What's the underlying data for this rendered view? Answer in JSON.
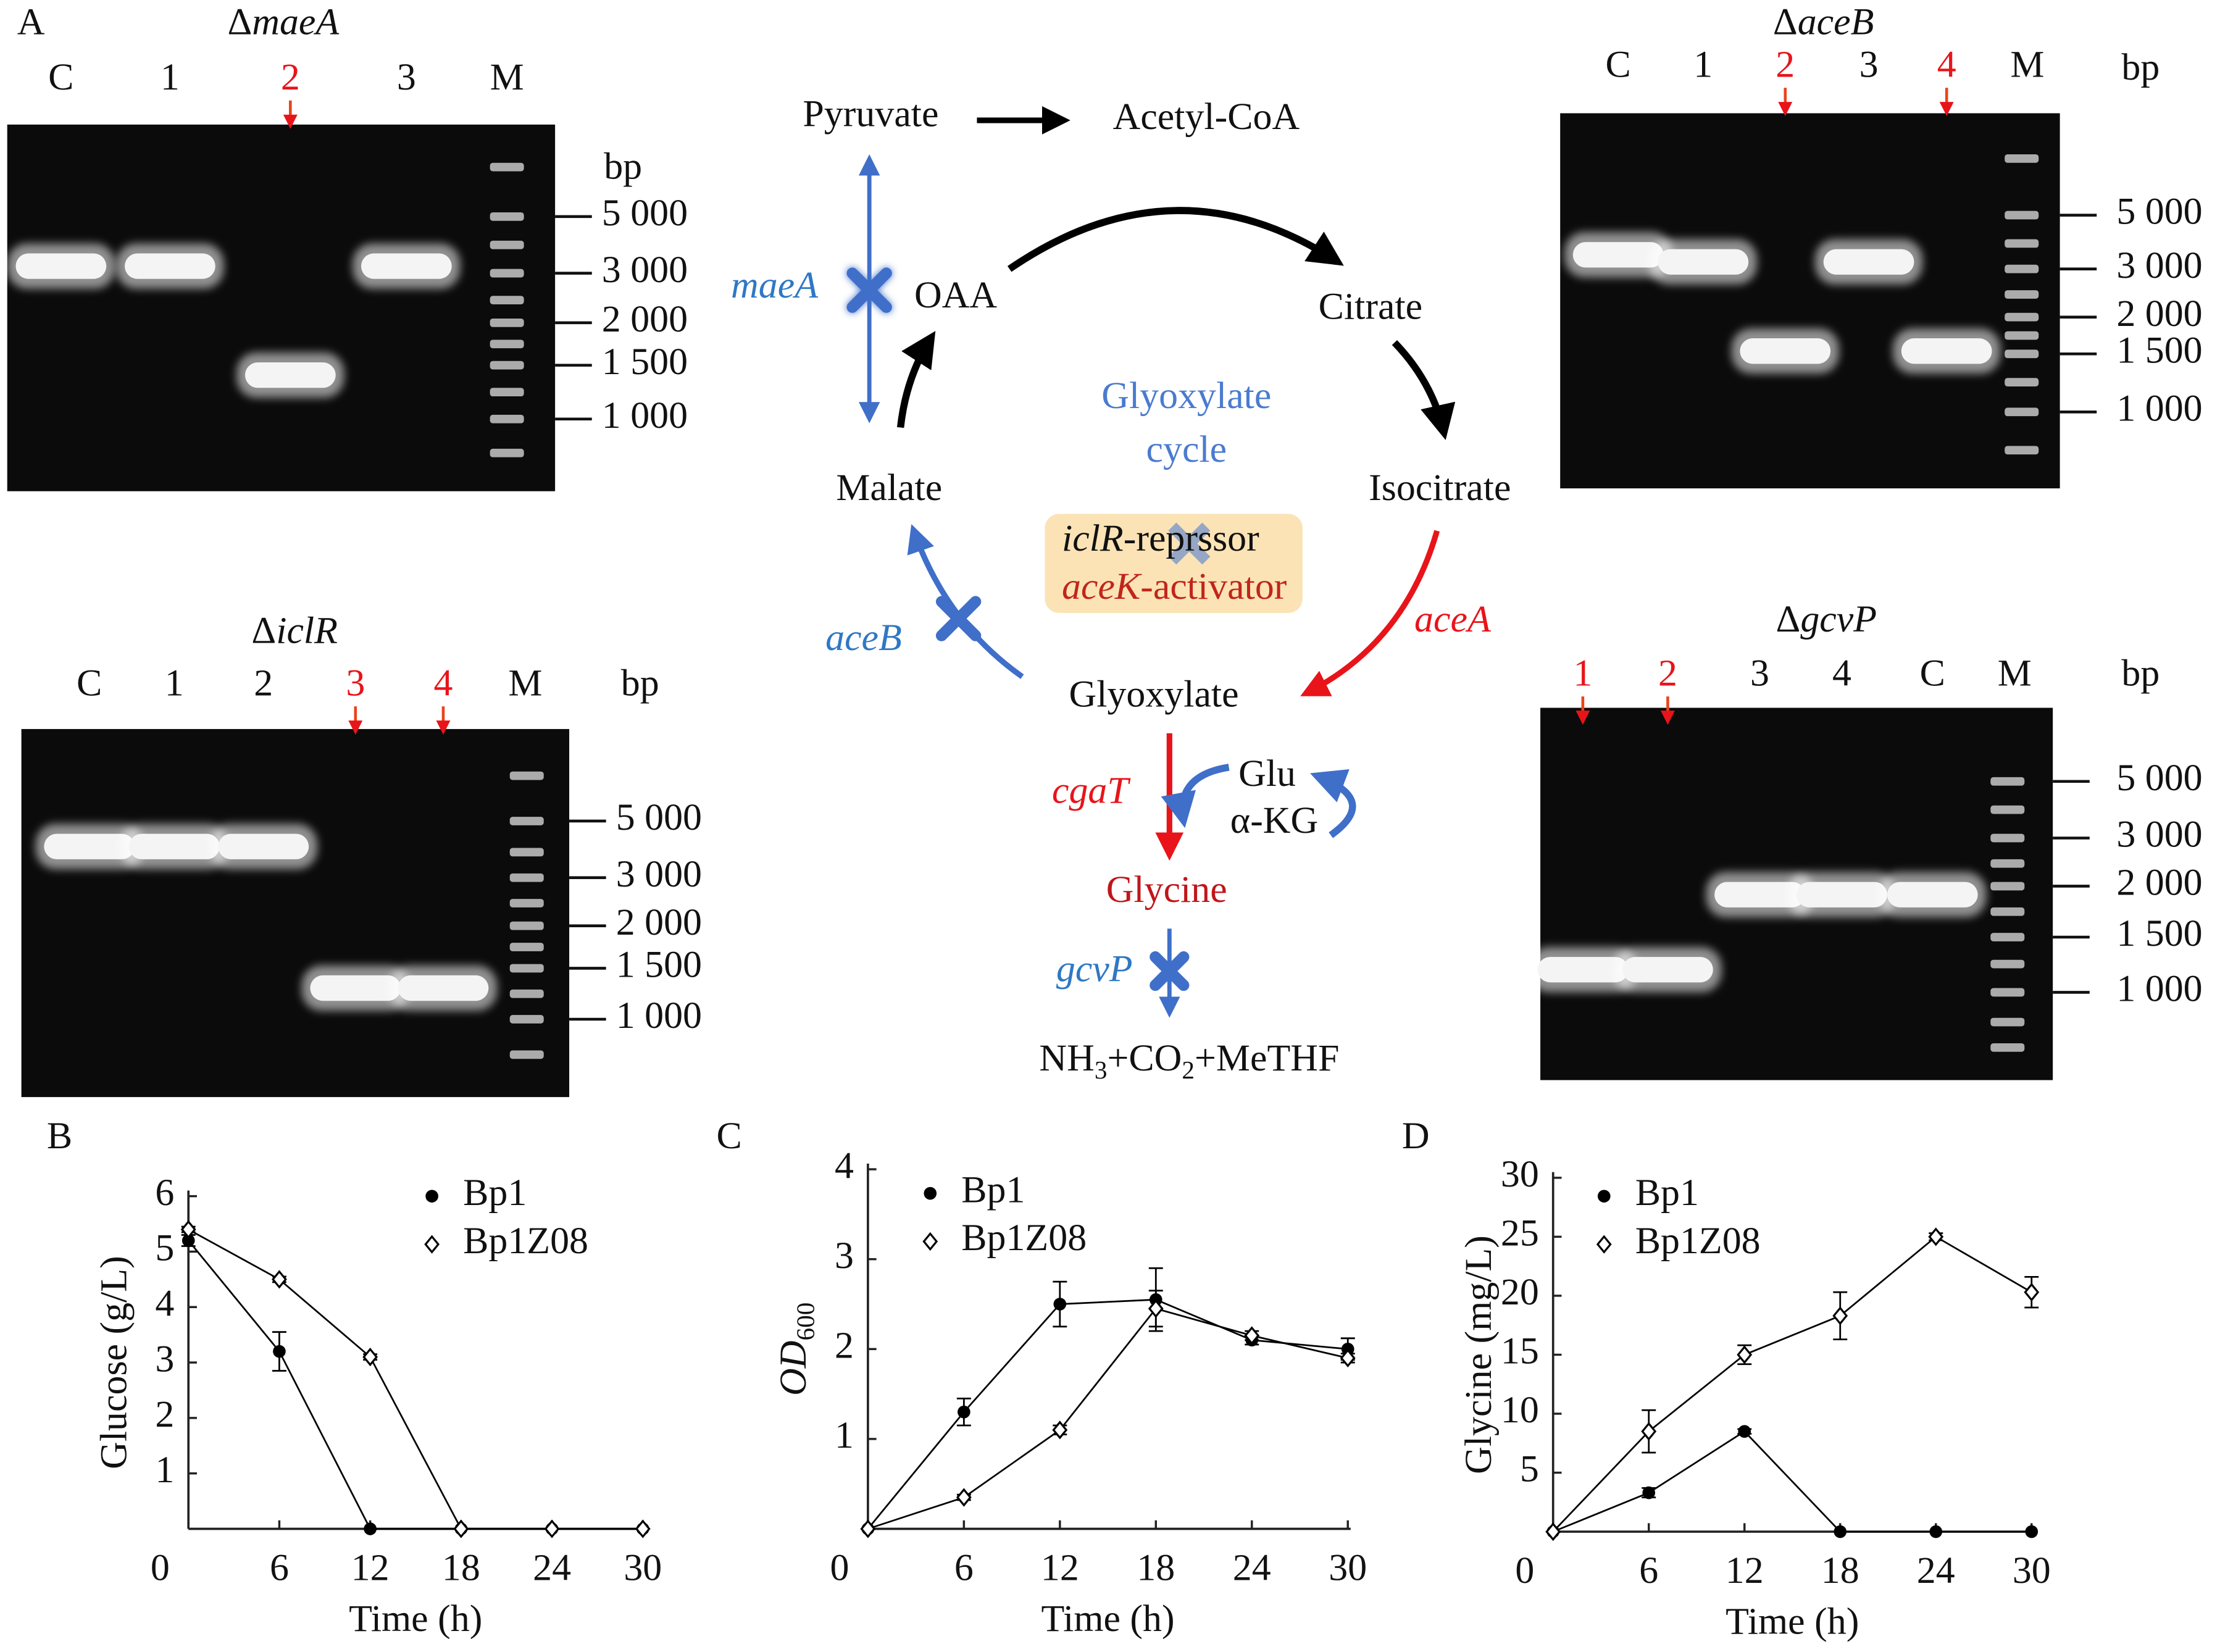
{
  "figure_label": "A",
  "gels": [
    {
      "title_delta": "Δ",
      "title_gene": "maeA",
      "lanes": [
        "C",
        "1",
        "2",
        "3",
        "M"
      ],
      "highlighted_lanes": [
        2
      ],
      "unit": "bp",
      "ladder": [
        "5 000",
        "3 000",
        "2 000",
        "1 500",
        "1 000"
      ]
    },
    {
      "title_delta": "Δ",
      "title_gene": "aceB",
      "lanes": [
        "C",
        "1",
        "2",
        "3",
        "4",
        "M"
      ],
      "highlighted_lanes": [
        2,
        4
      ],
      "unit": "bp",
      "ladder": [
        "5 000",
        "3 000",
        "2 000",
        "1 500",
        "1 000"
      ]
    },
    {
      "title_delta": "Δ",
      "title_gene": "iclR",
      "lanes": [
        "C",
        "1",
        "2",
        "3",
        "4",
        "M"
      ],
      "highlighted_lanes": [
        3,
        4
      ],
      "unit": "bp",
      "ladder": [
        "5 000",
        "3 000",
        "2 000",
        "1 500",
        "1 000"
      ]
    },
    {
      "title_delta": "Δ",
      "title_gene": "gcvP",
      "lanes": [
        "1",
        "2",
        "3",
        "4",
        "C",
        "M"
      ],
      "highlighted_lanes": [
        0,
        1
      ],
      "unit": "bp",
      "ladder": [
        "5 000",
        "3 000",
        "2 000",
        "1 500",
        "1 000"
      ]
    }
  ],
  "pathway": {
    "metabolites": [
      "Pyruvate",
      "Acetyl-CoA",
      "OAA",
      "Citrate",
      "Isocitrate",
      "Glyoxylate",
      "Malate",
      "Glycine"
    ],
    "product": [
      "NH",
      "3",
      "+CO",
      "2",
      "+MeTHF"
    ],
    "genes": [
      {
        "name": "maeA",
        "color": "#2f78c4"
      },
      {
        "name": "aceB",
        "color": "#2f78c4"
      },
      {
        "name": "aceA",
        "color": "#e8141a"
      },
      {
        "name": "cgaT",
        "color": "#e8141a"
      },
      {
        "name": "gcvP",
        "color": "#2f78c4"
      }
    ],
    "cycle_label": [
      "Glyoxylate",
      "cycle"
    ],
    "regulators": [
      {
        "gene": "iclR",
        "role": "-reprssor"
      },
      {
        "gene": "aceK",
        "role": "-activator"
      }
    ],
    "cofactors": [
      "Glu",
      "α-KG"
    ]
  },
  "chart_data": [
    {
      "type": "line",
      "panel_label": "B",
      "ylabel": "Glucose (g/L)",
      "xlabel": "Time (h)",
      "x": [
        0,
        6,
        12,
        18,
        24,
        30
      ],
      "xlim": [
        0,
        30
      ],
      "xticks": [
        0,
        6,
        12,
        18,
        24,
        30
      ],
      "ylim": [
        0,
        6
      ],
      "yticks": [
        1,
        2,
        3,
        4,
        5,
        6
      ],
      "series": [
        {
          "name": "Bp1",
          "color": "#000000",
          "marker": "circle",
          "values": [
            5.2,
            3.2,
            0,
            0,
            0,
            0
          ],
          "errors": [
            0.1,
            0.35,
            0,
            0,
            0,
            0
          ]
        },
        {
          "name": "Bp1Z08",
          "color": "#000000",
          "marker": "diamond",
          "values": [
            5.4,
            4.5,
            3.1,
            0,
            0,
            0
          ],
          "errors": [
            0.05,
            0.05,
            0.05,
            0,
            0,
            0
          ]
        }
      ]
    },
    {
      "type": "line",
      "panel_label": "C",
      "ylabel": "OD",
      "ylabel_subscript": "600",
      "xlabel": "Time (h)",
      "x": [
        0,
        6,
        12,
        18,
        24,
        30
      ],
      "xlim": [
        0,
        30
      ],
      "xticks": [
        0,
        6,
        12,
        18,
        24,
        30
      ],
      "ylim": [
        0,
        4
      ],
      "yticks": [
        1,
        2,
        3,
        4
      ],
      "series": [
        {
          "name": "Bp1",
          "color": "#000000",
          "marker": "circle",
          "values": [
            0,
            1.3,
            2.5,
            2.55,
            2.1,
            2.0
          ],
          "errors": [
            0,
            0.15,
            0.25,
            0.35,
            0.05,
            0.12
          ]
        },
        {
          "name": "Bp1Z08",
          "color": "#000000",
          "marker": "diamond",
          "values": [
            0,
            0.35,
            1.1,
            2.45,
            2.15,
            1.9
          ],
          "errors": [
            0,
            0.03,
            0.05,
            0.2,
            0.05,
            0.05
          ]
        }
      ]
    },
    {
      "type": "line",
      "panel_label": "D",
      "ylabel": "Glycine (mg/L)",
      "xlabel": "Time (h)",
      "x": [
        0,
        6,
        12,
        18,
        24,
        30
      ],
      "xlim": [
        0,
        30
      ],
      "xticks": [
        0,
        6,
        12,
        18,
        24,
        30
      ],
      "ylim": [
        0,
        30
      ],
      "yticks": [
        5,
        10,
        15,
        20,
        25,
        30
      ],
      "series": [
        {
          "name": "Bp1",
          "color": "#000000",
          "marker": "circle",
          "values": [
            0,
            3.3,
            8.5,
            0,
            0,
            0
          ],
          "errors": [
            0,
            0.4,
            0.2,
            0,
            0,
            0
          ]
        },
        {
          "name": "Bp1Z08",
          "color": "#000000",
          "marker": "diamond",
          "values": [
            0,
            8.5,
            15,
            18.3,
            25,
            20.3
          ],
          "errors": [
            0,
            1.8,
            0.8,
            2.0,
            0.3,
            1.3
          ]
        }
      ]
    }
  ]
}
